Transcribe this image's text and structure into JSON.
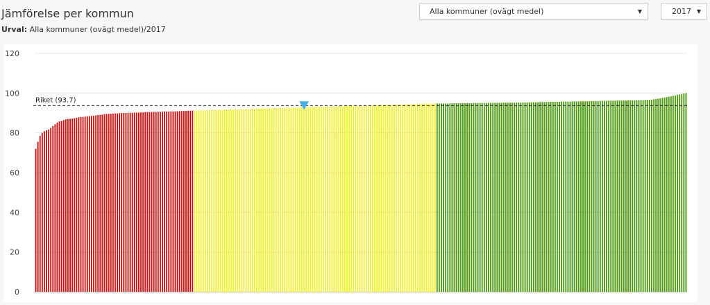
{
  "header": {
    "title": "Jämförelse per kommun",
    "selection_label": "Urval:",
    "selection_value": "Alla kommuner (ovägt medel)/2017"
  },
  "controls": {
    "region_select": "Alla kommuner (ovägt medel)",
    "year_select": "2017"
  },
  "colors": {
    "red": "#c01818",
    "yellow": "#f2ef35",
    "green": "#4f9a10",
    "marker": "#4ab0e8",
    "grid": "#e4e4e4"
  },
  "chart_data": {
    "type": "bar",
    "title": "",
    "xlabel": "",
    "ylabel": "",
    "ylim": [
      0,
      120
    ],
    "yticks": [
      0,
      20,
      40,
      60,
      80,
      100,
      120
    ],
    "grid": true,
    "reference_line": {
      "label": "Riket (93.7)",
      "value": 93.7
    },
    "highlight_marker_value": 93.1,
    "groups": [
      {
        "name": "red",
        "color": "red",
        "count": 74,
        "values": [
          72.0,
          75.5,
          78.5,
          80.0,
          80.8,
          81.3,
          81.7,
          82.5,
          83.4,
          84.3,
          85.2,
          85.8,
          86.0,
          86.4,
          86.8,
          87.0,
          87.1,
          87.2,
          87.4,
          87.6,
          87.8,
          88.0,
          88.0,
          88.2,
          88.3,
          88.4,
          88.5,
          88.6,
          88.8,
          89.0,
          89.0,
          89.2,
          89.4,
          89.5,
          89.5,
          89.6,
          89.7,
          89.8,
          89.8,
          89.9,
          90.0,
          90.0,
          90.0,
          90.1,
          90.1,
          90.1,
          90.2,
          90.2,
          90.2,
          90.3,
          90.3,
          90.4,
          90.4,
          90.4,
          90.5,
          90.5,
          90.5,
          90.6,
          90.6,
          90.6,
          90.7,
          90.7,
          90.7,
          90.8,
          90.8,
          90.8,
          90.9,
          90.9,
          91.0,
          91.0,
          91.0,
          91.1,
          91.1,
          91.2
        ]
      },
      {
        "name": "yellow",
        "color": "yellow",
        "count": 113,
        "start": 91.2,
        "end": 94.8,
        "marker_index": 51
      },
      {
        "name": "green",
        "color": "green",
        "count": 117,
        "start": 94.8,
        "end": 100.0,
        "tail_start_index": 99
      }
    ]
  }
}
